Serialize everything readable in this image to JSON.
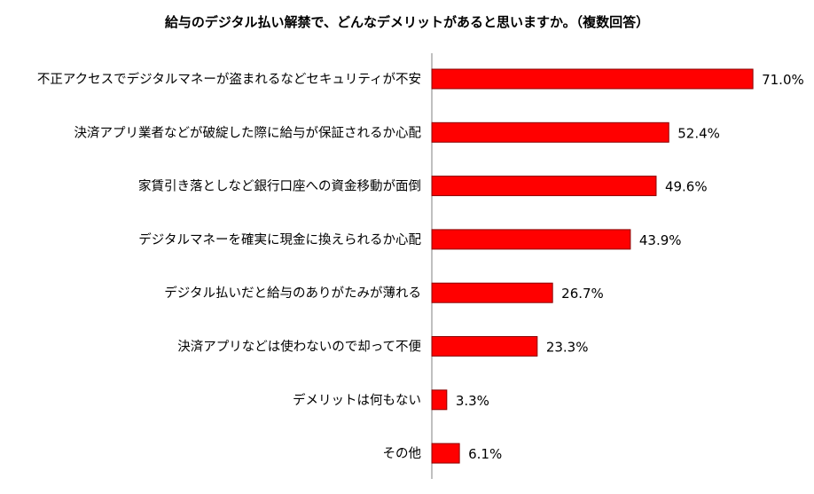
{
  "chart_data": {
    "type": "bar",
    "orientation": "horizontal",
    "title": "給与のデジタル払い解禁で、どんなデメリットがあると思いますか。（複数回答）",
    "categories": [
      "不正アクセスでデジタルマネーが盗まれるなどセキュリティが不安",
      "決済アプリ業者などが破綻した際に給与が保証されるか心配",
      "家賃引き落としなど銀行口座への資金移動が面倒",
      "デジタルマネーを確実に現金に換えられるか心配",
      "デジタル払いだと給与のありがたみが薄れる",
      "決済アプリなどは使わないので却って不便",
      "デメリットは何もない",
      "その他"
    ],
    "values": [
      71.0,
      52.4,
      49.6,
      43.9,
      26.7,
      23.3,
      3.3,
      6.1
    ],
    "value_labels": [
      "71.0%",
      "52.4%",
      "49.6%",
      "43.9%",
      "26.7%",
      "23.3%",
      "3.3%",
      "6.1%"
    ],
    "unit": "%",
    "xlim": [
      0,
      100
    ],
    "grid": false,
    "legend": "none",
    "colors": {
      "bar": "#ff0000",
      "bar_edge": "#8a0000",
      "axis": "#808080"
    }
  }
}
